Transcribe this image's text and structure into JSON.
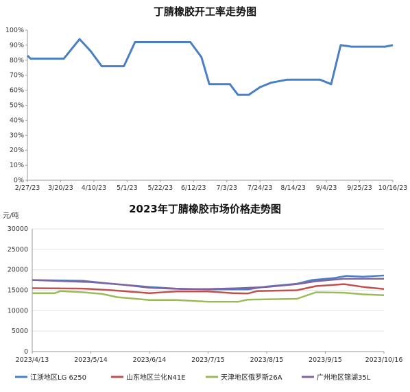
{
  "chart_data": [
    {
      "type": "line",
      "title": "丁腈橡胶开工率走势图",
      "xlabel": "",
      "ylabel": "",
      "x_ticks": [
        "2/27/23",
        "3/20/23",
        "4/10/23",
        "5/1/23",
        "5/22/23",
        "6/12/23",
        "7/3/23",
        "7/24/23",
        "8/14/23",
        "9/4/23",
        "9/25/23",
        "10/16/23"
      ],
      "y_ticks": [
        "0%",
        "10%",
        "20%",
        "30%",
        "40%",
        "50%",
        "60%",
        "70%",
        "80%",
        "90%",
        "100%"
      ],
      "ylim": [
        0,
        100
      ],
      "grid": false,
      "legend": "none",
      "series": [
        {
          "color": "#4a7fc1",
          "points": [
            {
              "x": "2023-02-27",
              "y": 83
            },
            {
              "x": "2023-03-01",
              "y": 81
            },
            {
              "x": "2023-03-22",
              "y": 81
            },
            {
              "x": "2023-04-01",
              "y": 94
            },
            {
              "x": "2023-04-08",
              "y": 86
            },
            {
              "x": "2023-04-15",
              "y": 76
            },
            {
              "x": "2023-04-29",
              "y": 76
            },
            {
              "x": "2023-05-06",
              "y": 92
            },
            {
              "x": "2023-06-10",
              "y": 92
            },
            {
              "x": "2023-06-17",
              "y": 82
            },
            {
              "x": "2023-06-22",
              "y": 64
            },
            {
              "x": "2023-07-05",
              "y": 64
            },
            {
              "x": "2023-07-10",
              "y": 57
            },
            {
              "x": "2023-07-17",
              "y": 57
            },
            {
              "x": "2023-07-24",
              "y": 62
            },
            {
              "x": "2023-07-31",
              "y": 65
            },
            {
              "x": "2023-08-10",
              "y": 67
            },
            {
              "x": "2023-08-31",
              "y": 67
            },
            {
              "x": "2023-09-07",
              "y": 64
            },
            {
              "x": "2023-09-13",
              "y": 90
            },
            {
              "x": "2023-09-20",
              "y": 89
            },
            {
              "x": "2023-10-11",
              "y": 89
            },
            {
              "x": "2023-10-16",
              "y": 90
            }
          ]
        }
      ]
    },
    {
      "type": "line",
      "title": "2023年丁腈橡胶市场价格走势图",
      "xlabel": "",
      "ylabel": "元/吨",
      "x_ticks": [
        "2023/4/13",
        "2023/5/14",
        "2023/6/14",
        "2023/7/15",
        "2023/8/15",
        "2023/9/15",
        "2023/10/16"
      ],
      "y_ticks": [
        "0",
        "5000",
        "10000",
        "15000",
        "20000",
        "25000",
        "30000"
      ],
      "ylim": [
        0,
        30000
      ],
      "grid": true,
      "legend": "bottom",
      "series": [
        {
          "name": "江浙地区LG 6250",
          "color": "#4a7fc1",
          "points": [
            {
              "x": "2023-04-13",
              "y": 17500
            },
            {
              "x": "2023-05-10",
              "y": 17300
            },
            {
              "x": "2023-05-25",
              "y": 16600
            },
            {
              "x": "2023-06-14",
              "y": 15800
            },
            {
              "x": "2023-06-28",
              "y": 15400
            },
            {
              "x": "2023-07-15",
              "y": 15200
            },
            {
              "x": "2023-08-05",
              "y": 15200
            },
            {
              "x": "2023-08-15",
              "y": 15900
            },
            {
              "x": "2023-08-31",
              "y": 16600
            },
            {
              "x": "2023-09-08",
              "y": 17500
            },
            {
              "x": "2023-09-20",
              "y": 18000
            },
            {
              "x": "2023-09-26",
              "y": 18500
            },
            {
              "x": "2023-10-05",
              "y": 18300
            },
            {
              "x": "2023-10-16",
              "y": 18600
            }
          ]
        },
        {
          "name": "山东地区兰化N41E",
          "color": "#c0504d",
          "points": [
            {
              "x": "2023-04-13",
              "y": 15500
            },
            {
              "x": "2023-05-10",
              "y": 15400
            },
            {
              "x": "2023-05-25",
              "y": 15000
            },
            {
              "x": "2023-06-14",
              "y": 14300
            },
            {
              "x": "2023-06-28",
              "y": 14700
            },
            {
              "x": "2023-07-15",
              "y": 14700
            },
            {
              "x": "2023-07-28",
              "y": 14300
            },
            {
              "x": "2023-08-05",
              "y": 14200
            },
            {
              "x": "2023-08-10",
              "y": 14800
            },
            {
              "x": "2023-08-31",
              "y": 15000
            },
            {
              "x": "2023-09-10",
              "y": 16000
            },
            {
              "x": "2023-09-25",
              "y": 16500
            },
            {
              "x": "2023-10-05",
              "y": 15800
            },
            {
              "x": "2023-10-16",
              "y": 15300
            }
          ]
        },
        {
          "name": "天津地区俄罗斯26A",
          "color": "#9bbb59",
          "points": [
            {
              "x": "2023-04-13",
              "y": 14300
            },
            {
              "x": "2023-04-25",
              "y": 14300
            },
            {
              "x": "2023-04-28",
              "y": 14800
            },
            {
              "x": "2023-05-10",
              "y": 14500
            },
            {
              "x": "2023-05-20",
              "y": 14100
            },
            {
              "x": "2023-05-28",
              "y": 13300
            },
            {
              "x": "2023-06-14",
              "y": 12600
            },
            {
              "x": "2023-06-28",
              "y": 12600
            },
            {
              "x": "2023-07-15",
              "y": 12200
            },
            {
              "x": "2023-07-31",
              "y": 12200
            },
            {
              "x": "2023-08-05",
              "y": 12700
            },
            {
              "x": "2023-08-31",
              "y": 12900
            },
            {
              "x": "2023-09-10",
              "y": 14500
            },
            {
              "x": "2023-09-25",
              "y": 14400
            },
            {
              "x": "2023-10-05",
              "y": 14000
            },
            {
              "x": "2023-10-16",
              "y": 13800
            }
          ]
        },
        {
          "name": "广州地区锦湖35L",
          "color": "#8064a2",
          "points": [
            {
              "x": "2023-04-13",
              "y": 17500
            },
            {
              "x": "2023-05-14",
              "y": 17000
            },
            {
              "x": "2023-06-01",
              "y": 16300
            },
            {
              "x": "2023-06-14",
              "y": 15600
            },
            {
              "x": "2023-07-01",
              "y": 15300
            },
            {
              "x": "2023-07-15",
              "y": 15300
            },
            {
              "x": "2023-08-01",
              "y": 15500
            },
            {
              "x": "2023-08-15",
              "y": 15800
            },
            {
              "x": "2023-08-31",
              "y": 16500
            },
            {
              "x": "2023-09-10",
              "y": 17200
            },
            {
              "x": "2023-09-25",
              "y": 17800
            },
            {
              "x": "2023-10-05",
              "y": 17800
            },
            {
              "x": "2023-10-16",
              "y": 17800
            }
          ]
        }
      ]
    }
  ]
}
